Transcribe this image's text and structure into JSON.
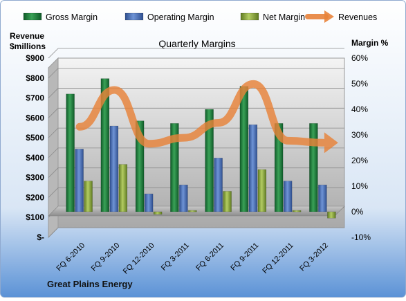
{
  "chart_data": {
    "type": "bar",
    "title": "Quarterly Margins",
    "source_label": "Great Plains Energy",
    "y_left_label": [
      "Revenue",
      "$millions"
    ],
    "y_right_label": "Margin %",
    "categories": [
      "FQ 6-2010",
      "FQ 9-2010",
      "FQ 12-2010",
      "FQ 3-2011",
      "FQ 6-2011",
      "FQ 9-2011",
      "FQ 12-2011",
      "FQ 3-2012"
    ],
    "y_left_ticks": [
      "$-",
      "$100",
      "$200",
      "$300",
      "$400",
      "$500",
      "$600",
      "$700",
      "$800",
      "$900"
    ],
    "y_left_range": [
      0,
      900
    ],
    "y_right_ticks": [
      "-10%",
      "0%",
      "10%",
      "20%",
      "30%",
      "40%",
      "50%",
      "60%"
    ],
    "y_right_range": [
      -10,
      60
    ],
    "series": [
      {
        "name": "Gross Margin",
        "axis": "right",
        "type": "bar",
        "color": "#1e7a3c",
        "values": [
          46.0,
          52.0,
          35.5,
          34.5,
          40.0,
          49.0,
          34.5,
          34.5
        ]
      },
      {
        "name": "Operating Margin",
        "axis": "right",
        "type": "bar",
        "color": "#4a6fb5",
        "values": [
          24.5,
          33.5,
          7.0,
          10.5,
          21.0,
          34.0,
          12.0,
          10.5
        ]
      },
      {
        "name": "Net Margin",
        "axis": "right",
        "type": "bar",
        "color": "#8aa63a",
        "values": [
          12.0,
          18.5,
          -1.0,
          0.5,
          8.0,
          16.5,
          0.5,
          -2.5
        ]
      },
      {
        "name": "Revenues",
        "axis": "left",
        "type": "line",
        "color": "#e8833a",
        "values": [
          555,
          740,
          470,
          500,
          575,
          770,
          485,
          475
        ]
      }
    ],
    "legend_position": "top",
    "grid": true
  }
}
